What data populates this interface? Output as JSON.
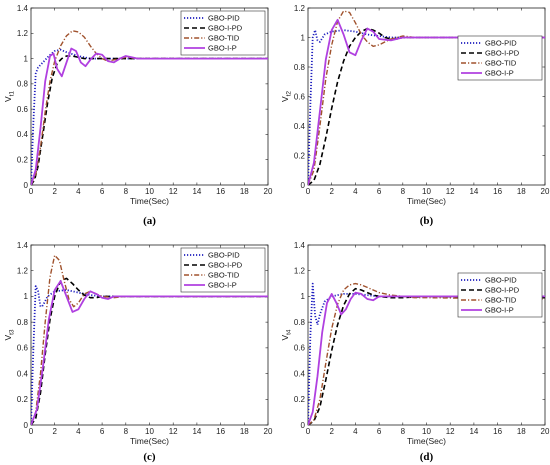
{
  "chart_data": [
    {
      "type": "line",
      "panel_label": "(a)",
      "xlabel": "Time(Sec)",
      "ylabel": "V",
      "ylabel_sub": "t1",
      "xlim": [
        0,
        20
      ],
      "ylim": [
        0,
        1.4
      ],
      "xticks": [
        0,
        2,
        4,
        6,
        8,
        10,
        12,
        14,
        16,
        18,
        20
      ],
      "yticks": [
        0,
        0.2,
        0.4,
        0.6,
        0.8,
        1,
        1.2,
        1.4
      ],
      "yticklabels": [
        "0",
        "0.2",
        "0.4",
        "0.6",
        "0.8",
        "1",
        "1.2",
        "1.4"
      ],
      "legend_position": "top-right",
      "series": [
        {
          "name": "GBO-PID",
          "color": "#1f1fbf",
          "dash": "dotted",
          "x": [
            0,
            0.2,
            0.4,
            0.6,
            0.8,
            1.0,
            1.5,
            2.0,
            2.5,
            3.0,
            4.0,
            5.0,
            6.0,
            8.0,
            10,
            20
          ],
          "y": [
            0,
            0.5,
            0.88,
            0.93,
            0.95,
            0.97,
            1.02,
            1.06,
            1.07,
            1.05,
            1.02,
            1.0,
            1.0,
            1.0,
            1.0,
            1.0
          ]
        },
        {
          "name": "GBO-I-PD",
          "color": "#000000",
          "dash": "dashed",
          "x": [
            0,
            0.3,
            0.6,
            1.0,
            1.4,
            1.8,
            2.2,
            2.6,
            3.0,
            3.5,
            4.0,
            4.5,
            5.0,
            6.0,
            8.0,
            20
          ],
          "y": [
            0,
            0.04,
            0.15,
            0.4,
            0.65,
            0.85,
            0.96,
            1.0,
            1.02,
            1.02,
            1.01,
            1.0,
            1.0,
            1.0,
            1.0,
            1.0
          ]
        },
        {
          "name": "GBO-TID",
          "color": "#a0522d",
          "dash": "dashdot",
          "x": [
            0,
            0.4,
            0.8,
            1.2,
            1.6,
            2.0,
            2.5,
            3.0,
            3.5,
            4.0,
            4.5,
            5.0,
            5.5,
            6.0,
            6.5,
            7.0,
            8.0,
            9.0,
            10,
            20
          ],
          "y": [
            0,
            0.08,
            0.3,
            0.58,
            0.82,
            0.98,
            1.1,
            1.18,
            1.22,
            1.21,
            1.17,
            1.1,
            1.04,
            1.0,
            0.98,
            0.99,
            1.01,
            1.0,
            1.0,
            1.0
          ]
        },
        {
          "name": "GBO-I-P",
          "color": "#b040e0",
          "dash": "solid",
          "x": [
            0,
            0.4,
            0.8,
            1.2,
            1.6,
            1.9,
            2.2,
            2.6,
            3.0,
            3.4,
            3.8,
            4.2,
            4.6,
            5.0,
            5.5,
            6.0,
            6.5,
            7.0,
            7.5,
            8.0,
            8.5,
            9.0,
            10,
            20
          ],
          "y": [
            0,
            0.12,
            0.45,
            0.82,
            1.02,
            1.04,
            0.92,
            0.86,
            0.97,
            1.08,
            1.06,
            0.97,
            0.94,
            0.99,
            1.04,
            1.03,
            0.98,
            0.97,
            1.0,
            1.02,
            1.01,
            1.0,
            1.0,
            1.0
          ]
        }
      ]
    },
    {
      "type": "line",
      "panel_label": "(b)",
      "xlabel": "Time(Sec)",
      "ylabel": "V",
      "ylabel_sub": "t2",
      "xlim": [
        0,
        20
      ],
      "ylim": [
        0,
        1.2
      ],
      "xticks": [
        0,
        2,
        4,
        6,
        8,
        10,
        12,
        14,
        16,
        18,
        20
      ],
      "yticks": [
        0,
        0.2,
        0.4,
        0.6,
        0.8,
        1,
        1.2
      ],
      "yticklabels": [
        "0",
        "0.2",
        "0.4",
        "0.6",
        "0.8",
        "1",
        "1.2"
      ],
      "legend_position": "right",
      "series": [
        {
          "name": "GBO-PID",
          "color": "#1f1fbf",
          "dash": "dotted",
          "x": [
            0,
            0.2,
            0.4,
            0.6,
            0.8,
            1.0,
            1.4,
            2.0,
            3.0,
            4.0,
            5.0,
            6.0,
            7.0,
            8.0,
            9.0,
            10,
            20
          ],
          "y": [
            0,
            0.55,
            1.0,
            1.05,
            0.98,
            0.97,
            1.02,
            1.04,
            1.05,
            1.04,
            1.02,
            1.01,
            1.0,
            1.0,
            1.0,
            1.0,
            1.0
          ]
        },
        {
          "name": "GBO-I-PD",
          "color": "#000000",
          "dash": "dashed",
          "x": [
            0,
            0.5,
            1.0,
            1.5,
            2.0,
            2.5,
            3.0,
            3.5,
            4.0,
            4.5,
            5.0,
            5.5,
            6.0,
            6.5,
            7.0,
            7.5,
            8.0,
            9.0,
            10,
            20
          ],
          "y": [
            0,
            0.03,
            0.14,
            0.32,
            0.52,
            0.7,
            0.84,
            0.94,
            1.0,
            1.04,
            1.06,
            1.05,
            1.03,
            1.0,
            0.99,
            0.99,
            1.0,
            1.0,
            1.0,
            1.0
          ]
        },
        {
          "name": "GBO-TID",
          "color": "#a0522d",
          "dash": "dashdot",
          "x": [
            0,
            0.5,
            1.0,
            1.5,
            2.0,
            2.5,
            3.0,
            3.5,
            4.0,
            4.5,
            5.0,
            5.5,
            6.0,
            6.5,
            7.0,
            8.0,
            9.0,
            10,
            20
          ],
          "y": [
            0,
            0.1,
            0.4,
            0.72,
            0.95,
            1.11,
            1.18,
            1.17,
            1.1,
            1.02,
            0.97,
            0.94,
            0.95,
            0.97,
            0.99,
            1.01,
            1.0,
            1.0,
            1.0
          ]
        },
        {
          "name": "GBO-I-P",
          "color": "#b040e0",
          "dash": "solid",
          "x": [
            0,
            0.5,
            1.0,
            1.5,
            2.0,
            2.5,
            3.0,
            3.5,
            4.0,
            4.5,
            5.0,
            5.5,
            6.0,
            7.0,
            8.0,
            9.0,
            10,
            20
          ],
          "y": [
            0,
            0.15,
            0.5,
            0.85,
            1.05,
            1.12,
            1.02,
            0.9,
            0.88,
            0.98,
            1.06,
            1.04,
            0.99,
            0.98,
            1.0,
            1.0,
            1.0,
            1.0
          ]
        }
      ]
    },
    {
      "type": "line",
      "panel_label": "(c)",
      "xlabel": "Time(Sec)",
      "ylabel": "V",
      "ylabel_sub": "t3",
      "xlim": [
        0,
        20
      ],
      "ylim": [
        0,
        1.4
      ],
      "xticks": [
        0,
        2,
        4,
        6,
        8,
        10,
        12,
        14,
        16,
        18,
        20
      ],
      "yticks": [
        0,
        0.2,
        0.4,
        0.6,
        0.8,
        1,
        1.2,
        1.4
      ],
      "yticklabels": [
        "0",
        "0.2",
        "0.4",
        "0.6",
        "0.8",
        "1",
        "1.2",
        "1.4"
      ],
      "legend_position": "top-right",
      "series": [
        {
          "name": "GBO-PID",
          "color": "#1f1fbf",
          "dash": "dotted",
          "x": [
            0,
            0.2,
            0.4,
            0.6,
            0.8,
            1.0,
            1.4,
            2.0,
            3.0,
            4.0,
            5.0,
            6.0,
            7.0,
            8.0,
            10,
            20
          ],
          "y": [
            0,
            0.6,
            1.08,
            1.04,
            0.92,
            0.93,
            1.0,
            1.04,
            1.05,
            1.03,
            1.01,
            1.0,
            1.0,
            1.0,
            1.0,
            1.0
          ]
        },
        {
          "name": "GBO-I-PD",
          "color": "#000000",
          "dash": "dashed",
          "x": [
            0,
            0.4,
            0.8,
            1.2,
            1.6,
            2.0,
            2.5,
            3.0,
            3.5,
            4.0,
            4.5,
            5.0,
            5.5,
            6.0,
            7.0,
            8.0,
            10,
            20
          ],
          "y": [
            0,
            0.05,
            0.25,
            0.55,
            0.82,
            1.0,
            1.12,
            1.14,
            1.1,
            1.05,
            1.01,
            0.99,
            0.99,
            1.0,
            1.0,
            1.0,
            1.0,
            1.0
          ]
        },
        {
          "name": "GBO-TID",
          "color": "#a0522d",
          "dash": "dashdot",
          "x": [
            0,
            0.4,
            0.8,
            1.2,
            1.6,
            2.0,
            2.4,
            2.8,
            3.2,
            3.6,
            4.0,
            4.5,
            5.0,
            5.5,
            6.0,
            7.0,
            8.0,
            10,
            20
          ],
          "y": [
            0,
            0.1,
            0.4,
            0.8,
            1.15,
            1.32,
            1.28,
            1.12,
            0.98,
            0.92,
            0.95,
            1.02,
            1.04,
            1.02,
            1.0,
            0.99,
            1.0,
            1.0,
            1.0
          ]
        },
        {
          "name": "GBO-I-P",
          "color": "#b040e0",
          "dash": "solid",
          "x": [
            0,
            0.5,
            1.0,
            1.5,
            2.0,
            2.5,
            3.0,
            3.5,
            4.0,
            4.5,
            5.0,
            5.5,
            6.0,
            6.5,
            7.0,
            8.0,
            10,
            20
          ],
          "y": [
            0,
            0.12,
            0.45,
            0.82,
            1.05,
            1.12,
            1.0,
            0.88,
            0.9,
            0.98,
            1.04,
            1.02,
            0.99,
            0.98,
            1.0,
            1.0,
            1.0,
            1.0
          ]
        }
      ]
    },
    {
      "type": "line",
      "panel_label": "(d)",
      "xlabel": "Time(Sec)",
      "ylabel": "V",
      "ylabel_sub": "t4",
      "xlim": [
        0,
        20
      ],
      "ylim": [
        0,
        1.4
      ],
      "xticks": [
        0,
        2,
        4,
        6,
        8,
        10,
        12,
        14,
        16,
        18,
        20
      ],
      "yticks": [
        0,
        0.2,
        0.4,
        0.6,
        0.8,
        1,
        1.2,
        1.4
      ],
      "yticklabels": [
        "0",
        "0.2",
        "0.4",
        "0.6",
        "0.8",
        "1",
        "1.2",
        "1.4"
      ],
      "legend_position": "right",
      "series": [
        {
          "name": "GBO-PID",
          "color": "#1f1fbf",
          "dash": "dotted",
          "x": [
            0,
            0.2,
            0.4,
            0.6,
            0.8,
            1.0,
            1.4,
            2.0,
            3.0,
            4.0,
            5.0,
            6.0,
            7.0,
            8.0,
            10,
            20
          ],
          "y": [
            0,
            0.7,
            1.1,
            0.85,
            0.78,
            0.86,
            0.96,
            1.0,
            1.02,
            1.02,
            1.01,
            1.0,
            1.0,
            1.0,
            1.0,
            1.0
          ]
        },
        {
          "name": "GBO-I-PD",
          "color": "#000000",
          "dash": "dashed",
          "x": [
            0,
            0.5,
            1.0,
            1.5,
            2.0,
            2.5,
            3.0,
            3.5,
            4.0,
            4.5,
            5.0,
            5.5,
            6.0,
            7.0,
            8.0,
            10,
            20
          ],
          "y": [
            0,
            0.03,
            0.14,
            0.35,
            0.58,
            0.78,
            0.93,
            1.02,
            1.06,
            1.05,
            1.03,
            1.01,
            1.0,
            0.99,
            0.99,
            1.0,
            0.99
          ]
        },
        {
          "name": "GBO-TID",
          "color": "#a0522d",
          "dash": "dashdot",
          "x": [
            0,
            0.5,
            1.0,
            1.5,
            2.0,
            2.5,
            3.0,
            3.5,
            4.0,
            4.5,
            5.0,
            5.5,
            6.0,
            7.0,
            8.0,
            9.0,
            10,
            20
          ],
          "y": [
            0,
            0.04,
            0.2,
            0.48,
            0.75,
            0.94,
            1.05,
            1.09,
            1.1,
            1.09,
            1.07,
            1.05,
            1.03,
            1.01,
            1.0,
            0.99,
            0.99,
            0.98
          ]
        },
        {
          "name": "GBO-I-P",
          "color": "#b040e0",
          "dash": "solid",
          "x": [
            0,
            0.4,
            0.8,
            1.2,
            1.6,
            2.0,
            2.4,
            2.8,
            3.2,
            3.6,
            4.0,
            4.5,
            5.0,
            5.5,
            6.0,
            7.0,
            8.0,
            10,
            20
          ],
          "y": [
            0,
            0.1,
            0.38,
            0.72,
            0.95,
            1.02,
            0.95,
            0.86,
            0.9,
            0.98,
            1.03,
            1.02,
            0.98,
            0.97,
            1.0,
            1.0,
            1.0,
            1.0,
            1.0
          ]
        }
      ]
    }
  ]
}
